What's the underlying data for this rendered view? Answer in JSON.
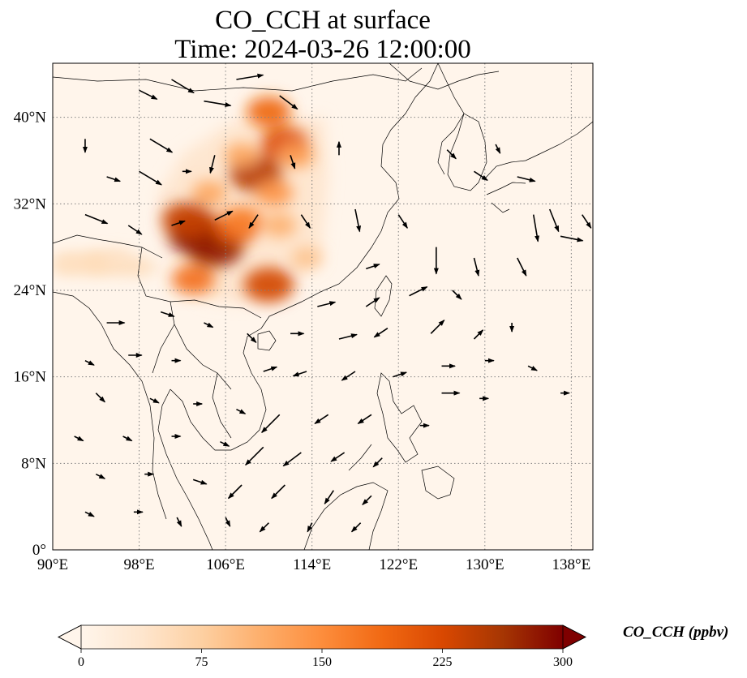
{
  "title": {
    "line1": "CO_CCH at surface",
    "line2": "Time: 2024-03-26 12:00:00"
  },
  "map": {
    "extent": {
      "lon": [
        90,
        140
      ],
      "lat": [
        0,
        45
      ]
    },
    "gridlines": "dotted",
    "lon_ticks": [
      {
        "value": 90,
        "label": "90°E"
      },
      {
        "value": 98,
        "label": "98°E"
      },
      {
        "value": 106,
        "label": "106°E"
      },
      {
        "value": 114,
        "label": "114°E"
      },
      {
        "value": 122,
        "label": "122°E"
      },
      {
        "value": 130,
        "label": "130°E"
      },
      {
        "value": 138,
        "label": "138°E"
      }
    ],
    "lat_ticks": [
      {
        "value": 0,
        "label": "0°"
      },
      {
        "value": 8,
        "label": "8°N"
      },
      {
        "value": 16,
        "label": "16°N"
      },
      {
        "value": 24,
        "label": "24°N"
      },
      {
        "value": 32,
        "label": "32°N"
      },
      {
        "value": 40,
        "label": "40°N"
      }
    ],
    "field_blobs_ppbv": [
      {
        "lon": 103.5,
        "lat": 29.2,
        "value": 300
      },
      {
        "lon": 105.0,
        "lat": 28.0,
        "value": 280
      },
      {
        "lon": 102.5,
        "lat": 30.5,
        "value": 240
      },
      {
        "lon": 107.0,
        "lat": 29.8,
        "value": 200
      },
      {
        "lon": 108.8,
        "lat": 34.8,
        "value": 250
      },
      {
        "lon": 111.5,
        "lat": 37.5,
        "value": 220
      },
      {
        "lon": 110.0,
        "lat": 24.5,
        "value": 230
      },
      {
        "lon": 103.0,
        "lat": 25.0,
        "value": 180
      },
      {
        "lon": 110.0,
        "lat": 40.5,
        "value": 190
      },
      {
        "lon": 107.5,
        "lat": 30.5,
        "value": 160
      },
      {
        "lon": 110.5,
        "lat": 33.0,
        "value": 140
      },
      {
        "lon": 107.5,
        "lat": 36.5,
        "value": 120
      },
      {
        "lon": 112.5,
        "lat": 36.5,
        "value": 130
      },
      {
        "lon": 104.5,
        "lat": 33.0,
        "value": 120
      },
      {
        "lon": 113.5,
        "lat": 27.0,
        "value": 90
      },
      {
        "lon": 111.0,
        "lat": 30.0,
        "value": 110
      },
      {
        "lon": 94.0,
        "lat": 26.5,
        "value": 55
      },
      {
        "lon": 96.0,
        "lat": 27.0,
        "value": 45
      },
      {
        "lon": 91.5,
        "lat": 26.5,
        "value": 50
      }
    ],
    "wind_vectors": [
      {
        "lon": 101,
        "lat": 43.5,
        "u": 2.5,
        "v": -1.5
      },
      {
        "lon": 107,
        "lat": 43.5,
        "u": 3,
        "v": 0.5
      },
      {
        "lon": 111,
        "lat": 42,
        "u": 2,
        "v": -1.5
      },
      {
        "lon": 98,
        "lat": 42.5,
        "u": 2,
        "v": -1
      },
      {
        "lon": 104,
        "lat": 41.5,
        "u": 3,
        "v": -0.5
      },
      {
        "lon": 99,
        "lat": 38,
        "u": 2.5,
        "v": -1.5
      },
      {
        "lon": 93,
        "lat": 38,
        "u": 0,
        "v": -1.5
      },
      {
        "lon": 95,
        "lat": 34.5,
        "u": 1.5,
        "v": -0.5
      },
      {
        "lon": 98,
        "lat": 35,
        "u": 2.5,
        "v": -1.5
      },
      {
        "lon": 102,
        "lat": 35,
        "u": 1,
        "v": 0
      },
      {
        "lon": 105,
        "lat": 36.5,
        "u": -0.5,
        "v": -2
      },
      {
        "lon": 112,
        "lat": 36.5,
        "u": 0.5,
        "v": -1.5
      },
      {
        "lon": 116.5,
        "lat": 36.5,
        "u": 0,
        "v": 1.5
      },
      {
        "lon": 93,
        "lat": 31,
        "u": 2.5,
        "v": -1
      },
      {
        "lon": 97,
        "lat": 30,
        "u": 1.5,
        "v": -1
      },
      {
        "lon": 101,
        "lat": 30,
        "u": 1.5,
        "v": 0.5
      },
      {
        "lon": 105,
        "lat": 30.5,
        "u": 2,
        "v": 1
      },
      {
        "lon": 109,
        "lat": 31,
        "u": -1,
        "v": -1.5
      },
      {
        "lon": 113,
        "lat": 31,
        "u": 1,
        "v": -1.5
      },
      {
        "lon": 118,
        "lat": 31.5,
        "u": 0.5,
        "v": -2.5
      },
      {
        "lon": 122,
        "lat": 31,
        "u": 1,
        "v": -1.5
      },
      {
        "lon": 125.5,
        "lat": 28,
        "u": 0,
        "v": -3
      },
      {
        "lon": 129,
        "lat": 27,
        "u": 0.5,
        "v": -2
      },
      {
        "lon": 133,
        "lat": 27,
        "u": 1,
        "v": -2
      },
      {
        "lon": 137,
        "lat": 29,
        "u": 2.5,
        "v": -0.5
      },
      {
        "lon": 134.5,
        "lat": 31,
        "u": 0.5,
        "v": -3
      },
      {
        "lon": 136,
        "lat": 31.5,
        "u": 1,
        "v": -2.5
      },
      {
        "lon": 139,
        "lat": 31,
        "u": 1,
        "v": -1.5
      },
      {
        "lon": 129,
        "lat": 35,
        "u": 1.5,
        "v": -1
      },
      {
        "lon": 133,
        "lat": 34.5,
        "u": 2,
        "v": -0.5
      },
      {
        "lon": 126.5,
        "lat": 37,
        "u": 1,
        "v": -1
      },
      {
        "lon": 131,
        "lat": 37.5,
        "u": 0.5,
        "v": -1
      },
      {
        "lon": 119,
        "lat": 26,
        "u": 1.5,
        "v": 0.5
      },
      {
        "lon": 114.5,
        "lat": 22.5,
        "u": 2,
        "v": 0.5
      },
      {
        "lon": 119,
        "lat": 22.5,
        "u": 1.5,
        "v": 1
      },
      {
        "lon": 123,
        "lat": 23.5,
        "u": 2,
        "v": 1
      },
      {
        "lon": 127,
        "lat": 24,
        "u": 1,
        "v": -1
      },
      {
        "lon": 121,
        "lat": 20.5,
        "u": -1.5,
        "v": -1
      },
      {
        "lon": 125,
        "lat": 20,
        "u": 1.5,
        "v": 1.5
      },
      {
        "lon": 129,
        "lat": 19.5,
        "u": 1,
        "v": 1
      },
      {
        "lon": 132.5,
        "lat": 21,
        "u": 0,
        "v": -1
      },
      {
        "lon": 95,
        "lat": 21,
        "u": 2,
        "v": 0
      },
      {
        "lon": 100,
        "lat": 22,
        "u": 1.5,
        "v": -0.5
      },
      {
        "lon": 104,
        "lat": 21,
        "u": 1,
        "v": -0.5
      },
      {
        "lon": 108,
        "lat": 20,
        "u": 1,
        "v": -1
      },
      {
        "lon": 112,
        "lat": 20,
        "u": 1.5,
        "v": 0
      },
      {
        "lon": 116.5,
        "lat": 19.5,
        "u": 2,
        "v": 0.5
      },
      {
        "lon": 126,
        "lat": 17,
        "u": 1.5,
        "v": 0
      },
      {
        "lon": 130,
        "lat": 17.5,
        "u": 1,
        "v": 0
      },
      {
        "lon": 134,
        "lat": 17,
        "u": 1,
        "v": -0.5
      },
      {
        "lon": 93,
        "lat": 17.5,
        "u": 1,
        "v": -0.5
      },
      {
        "lon": 97,
        "lat": 18,
        "u": 1.5,
        "v": 0
      },
      {
        "lon": 101,
        "lat": 17.5,
        "u": 1,
        "v": 0
      },
      {
        "lon": 109.5,
        "lat": 16.5,
        "u": 1.5,
        "v": 0.5
      },
      {
        "lon": 113.5,
        "lat": 16.5,
        "u": -1.5,
        "v": -0.5
      },
      {
        "lon": 118,
        "lat": 16.5,
        "u": -1.5,
        "v": -1
      },
      {
        "lon": 121.5,
        "lat": 16,
        "u": 1.5,
        "v": 0.5
      },
      {
        "lon": 126,
        "lat": 14.5,
        "u": 2,
        "v": 0
      },
      {
        "lon": 129.5,
        "lat": 14,
        "u": 1,
        "v": 0
      },
      {
        "lon": 137,
        "lat": 14.5,
        "u": 1,
        "v": 0
      },
      {
        "lon": 94,
        "lat": 14.5,
        "u": 1,
        "v": -1
      },
      {
        "lon": 99,
        "lat": 14,
        "u": 1,
        "v": -0.5
      },
      {
        "lon": 103,
        "lat": 13.5,
        "u": 1,
        "v": 0
      },
      {
        "lon": 107,
        "lat": 13,
        "u": 1,
        "v": -0.5
      },
      {
        "lon": 111,
        "lat": 12.5,
        "u": -2,
        "v": -2
      },
      {
        "lon": 115.5,
        "lat": 12.5,
        "u": -1.5,
        "v": -1
      },
      {
        "lon": 119.5,
        "lat": 12.5,
        "u": -1.5,
        "v": -1
      },
      {
        "lon": 124,
        "lat": 11.5,
        "u": 1,
        "v": 0
      },
      {
        "lon": 92,
        "lat": 10.5,
        "u": 1,
        "v": -0.5
      },
      {
        "lon": 96.5,
        "lat": 10.5,
        "u": 1,
        "v": -0.5
      },
      {
        "lon": 101,
        "lat": 10.5,
        "u": 1,
        "v": 0
      },
      {
        "lon": 105.5,
        "lat": 10,
        "u": 1,
        "v": -0.5
      },
      {
        "lon": 109.5,
        "lat": 9.5,
        "u": -2,
        "v": -2
      },
      {
        "lon": 113,
        "lat": 9,
        "u": -2,
        "v": -1.5
      },
      {
        "lon": 117,
        "lat": 9,
        "u": -1.5,
        "v": -1
      },
      {
        "lon": 120.5,
        "lat": 8.5,
        "u": -1,
        "v": -1
      },
      {
        "lon": 94,
        "lat": 7,
        "u": 1,
        "v": -0.5
      },
      {
        "lon": 98.5,
        "lat": 7,
        "u": 1,
        "v": 0
      },
      {
        "lon": 103,
        "lat": 6.5,
        "u": 1.5,
        "v": -0.5
      },
      {
        "lon": 107.5,
        "lat": 6,
        "u": -1.5,
        "v": -1.5
      },
      {
        "lon": 111.5,
        "lat": 6,
        "u": -1.5,
        "v": -1.5
      },
      {
        "lon": 116,
        "lat": 5.5,
        "u": -1,
        "v": -1.5
      },
      {
        "lon": 119.5,
        "lat": 5,
        "u": -1,
        "v": -1
      },
      {
        "lon": 93,
        "lat": 3.5,
        "u": 1,
        "v": -0.5
      },
      {
        "lon": 97.5,
        "lat": 3.5,
        "u": 1,
        "v": 0
      },
      {
        "lon": 101.5,
        "lat": 3,
        "u": 0.5,
        "v": -1
      },
      {
        "lon": 106,
        "lat": 3,
        "u": 0.5,
        "v": -1
      },
      {
        "lon": 110,
        "lat": 2.5,
        "u": -1,
        "v": -1
      },
      {
        "lon": 114,
        "lat": 2.5,
        "u": -0.5,
        "v": -1
      },
      {
        "lon": 118.5,
        "lat": 2.5,
        "u": -1,
        "v": -1
      }
    ]
  },
  "colorbar": {
    "label": "CO_CCH (ppbv)",
    "range": [
      0,
      300
    ],
    "extend": "both",
    "colormap": [
      "#fff5eb",
      "#fee6ce",
      "#fdd0a2",
      "#fdae6b",
      "#fd8d3c",
      "#f16913",
      "#d94801",
      "#a63603",
      "#7f0000"
    ],
    "ticks": [
      {
        "value": 0,
        "label": "0"
      },
      {
        "value": 75,
        "label": "75"
      },
      {
        "value": 150,
        "label": "150"
      },
      {
        "value": 225,
        "label": "225"
      },
      {
        "value": 300,
        "label": "300"
      }
    ]
  }
}
